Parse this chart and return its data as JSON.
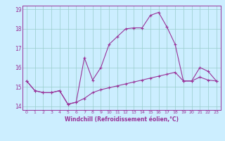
{
  "xlabel": "Windchill (Refroidissement éolien,°C)",
  "background_color": "#cceeff",
  "line_color": "#993399",
  "grid_color": "#99cccc",
  "xlim": [
    -0.5,
    23.5
  ],
  "ylim": [
    13.8,
    19.2
  ],
  "yticks": [
    14,
    15,
    16,
    17,
    18,
    19
  ],
  "xticks": [
    0,
    1,
    2,
    3,
    4,
    5,
    6,
    7,
    8,
    9,
    10,
    11,
    12,
    13,
    14,
    15,
    16,
    17,
    18,
    19,
    20,
    21,
    22,
    23
  ],
  "line1_x": [
    0,
    1,
    2,
    3,
    4,
    5,
    6,
    7,
    8,
    9,
    10,
    11,
    12,
    13,
    14,
    15,
    16,
    17,
    18,
    19,
    20,
    21,
    22,
    23
  ],
  "line1_y": [
    15.3,
    14.8,
    14.7,
    14.7,
    14.8,
    14.1,
    14.2,
    14.4,
    14.7,
    14.85,
    14.95,
    15.05,
    15.15,
    15.25,
    15.35,
    15.45,
    15.55,
    15.65,
    15.75,
    15.3,
    15.3,
    15.5,
    15.35,
    15.3
  ],
  "line2_x": [
    0,
    1,
    2,
    3,
    4,
    5,
    6,
    7,
    8,
    9,
    10,
    11,
    12,
    13,
    14,
    15,
    16,
    17,
    18,
    19,
    20,
    21,
    22,
    23
  ],
  "line2_y": [
    15.3,
    14.8,
    14.7,
    14.7,
    14.8,
    14.1,
    14.2,
    16.5,
    15.35,
    16.0,
    17.2,
    17.6,
    18.0,
    18.05,
    18.05,
    18.7,
    18.85,
    18.1,
    17.2,
    15.3,
    15.3,
    16.0,
    15.8,
    15.3
  ],
  "figwidth": 3.2,
  "figheight": 2.0,
  "dpi": 100
}
